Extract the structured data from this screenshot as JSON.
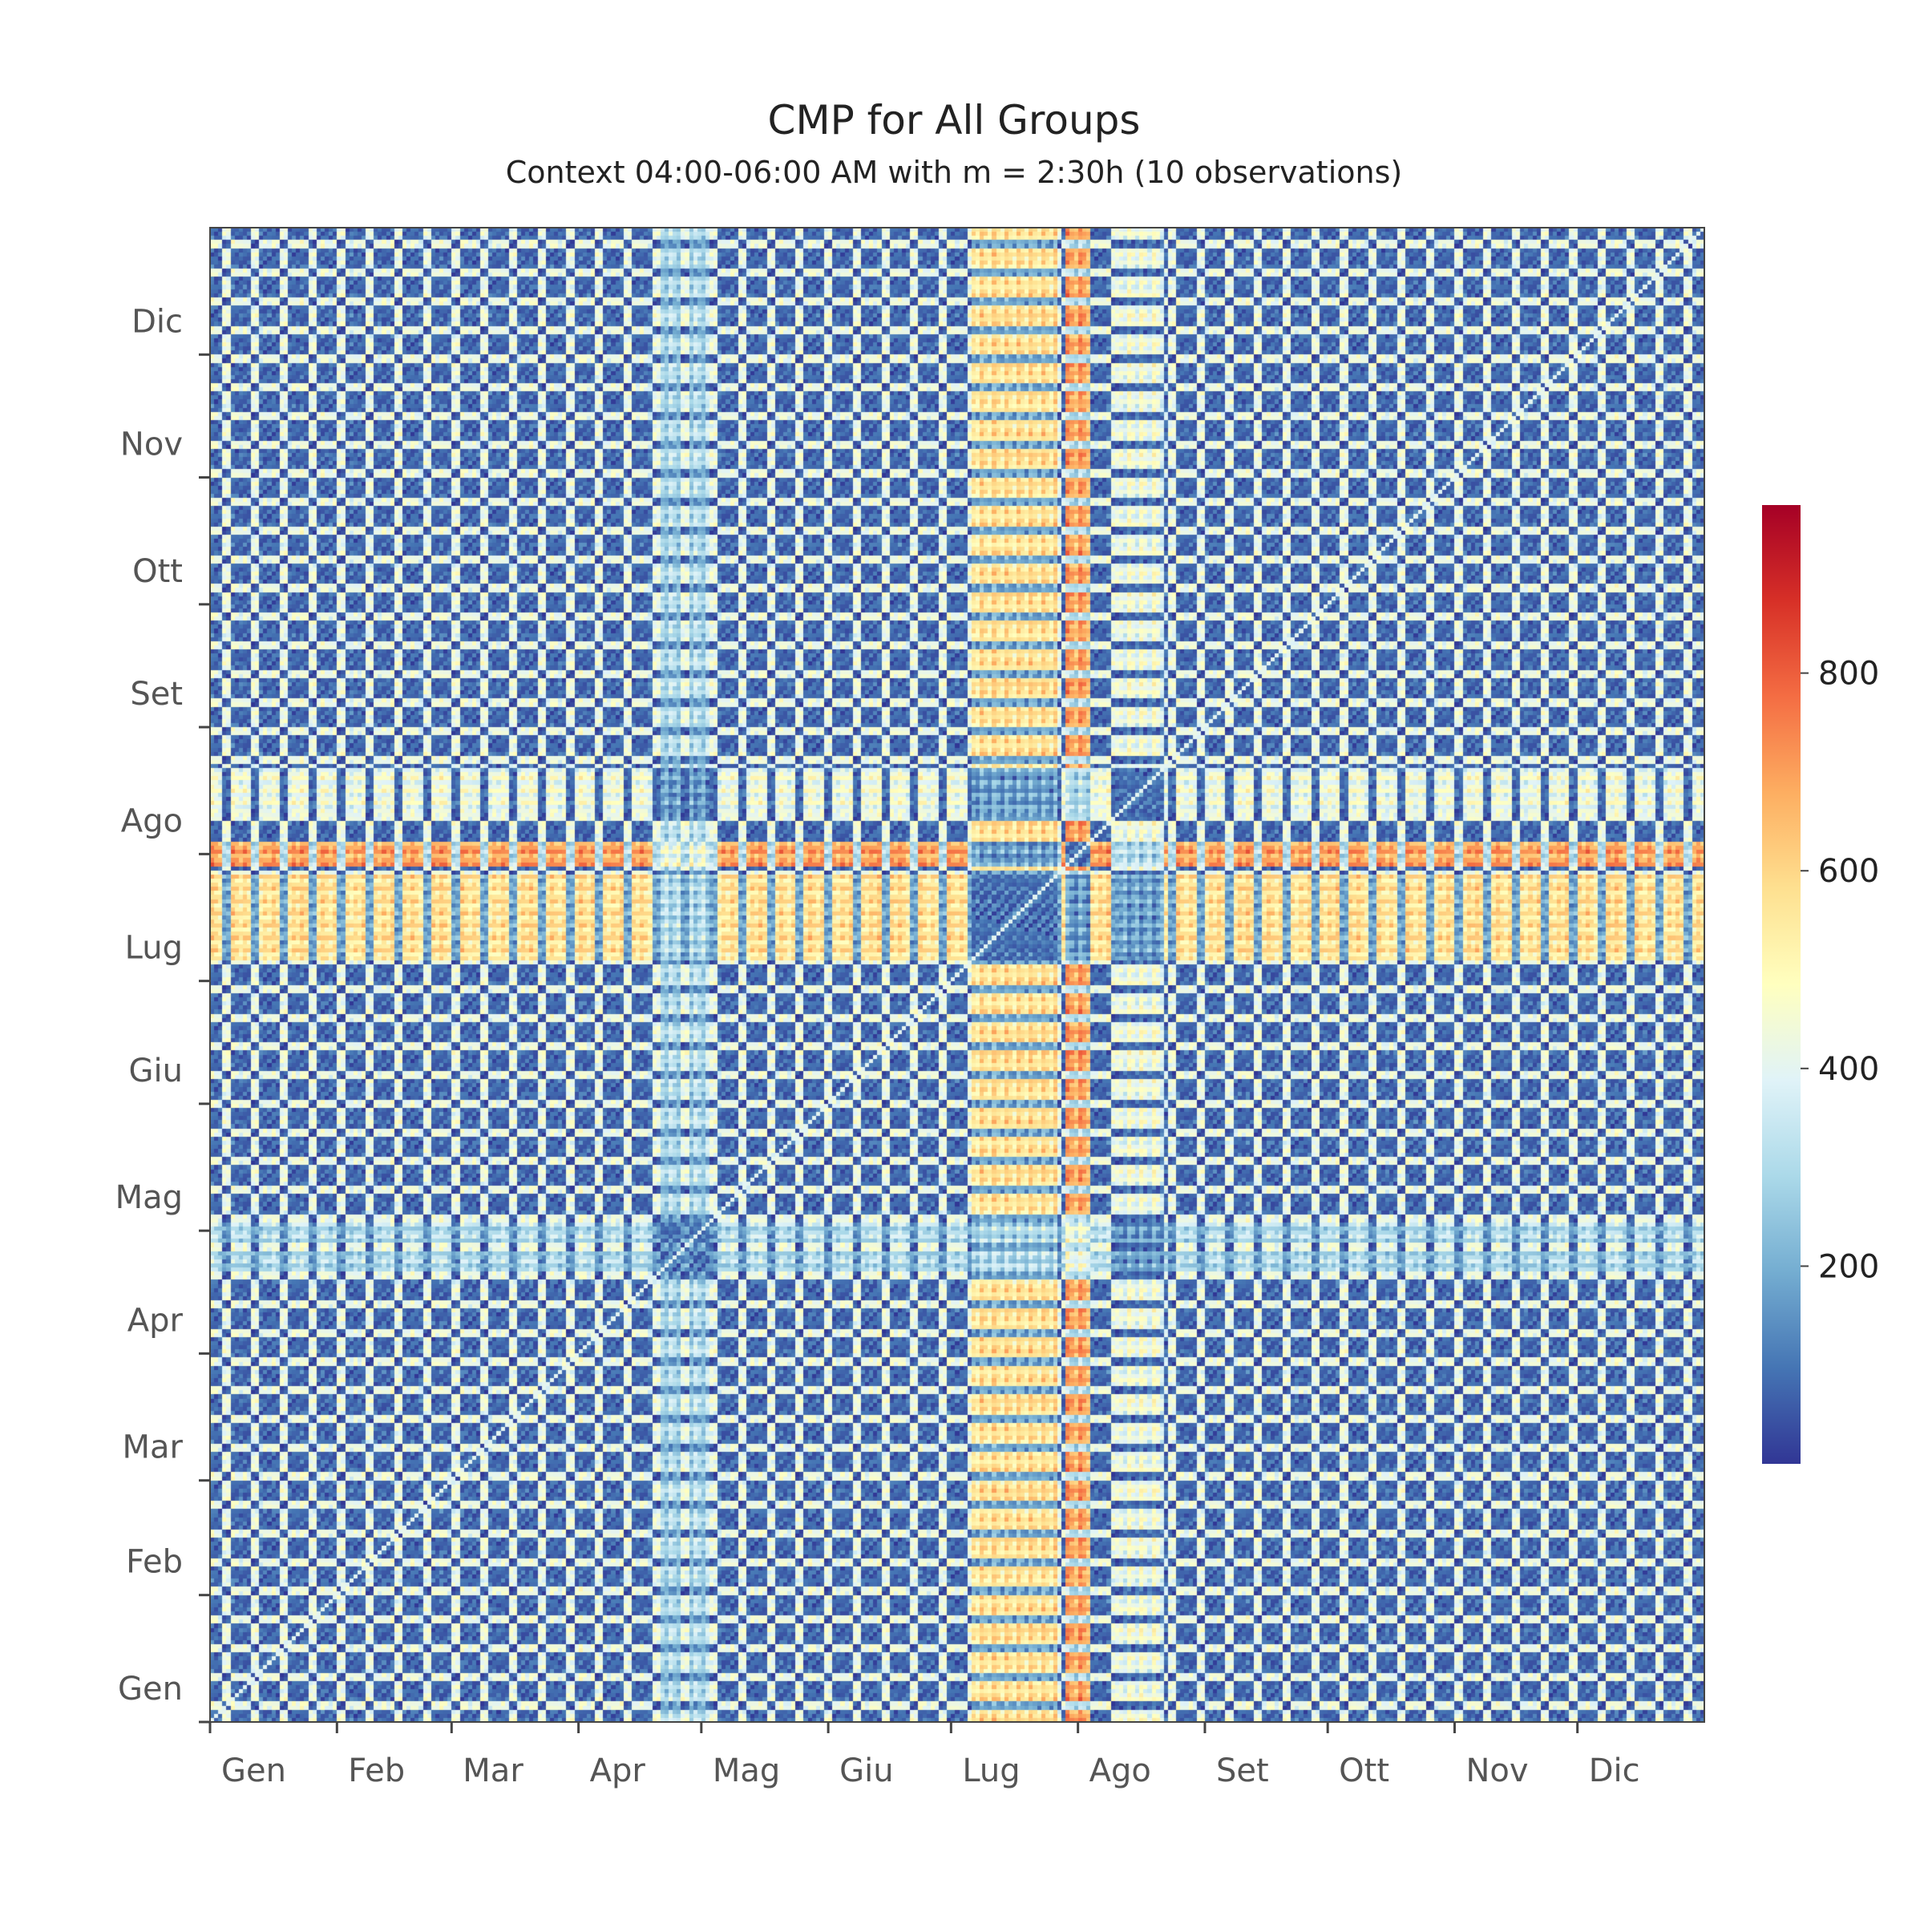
{
  "chart_data": {
    "type": "heatmap",
    "title": "CMP for All Groups",
    "subtitle": "Context 04:00-06:00 AM with m = 2:30h (10 observations)",
    "x_tick_labels": [
      "Gen",
      "Feb",
      "Mar",
      "Apr",
      "Mag",
      "Giu",
      "Lug",
      "Ago",
      "Set",
      "Ott",
      "Nov",
      "Dic"
    ],
    "y_tick_labels": [
      "Gen",
      "Feb",
      "Mar",
      "Apr",
      "Mag",
      "Giu",
      "Lug",
      "Ago",
      "Set",
      "Ott",
      "Nov",
      "Dic"
    ],
    "month_lengths": [
      31,
      28,
      31,
      30,
      31,
      30,
      31,
      31,
      30,
      31,
      30,
      31
    ],
    "colorbar": {
      "ticks": [
        200,
        400,
        600,
        800
      ],
      "range": [
        0,
        970
      ],
      "colorscale": [
        "#313695",
        "#4575b4",
        "#74add1",
        "#abd9e9",
        "#e0f3f8",
        "#ffffbf",
        "#fee090",
        "#fdae61",
        "#f46d43",
        "#d73027",
        "#a50026"
      ]
    },
    "diagonal_value": 400,
    "day_profile": {
      "description_free": true,
      "base_low": 40,
      "weekend_high": 470,
      "hot_ranges": [
        {
          "start": "2020-07-05",
          "end": "2020-07-25",
          "value": 700
        },
        {
          "start": "2020-07-28",
          "end": "2020-08-02",
          "value": 820
        },
        {
          "start": "2020-04-20",
          "end": "2020-05-02",
          "value": 420
        },
        {
          "start": "2020-08-10",
          "end": "2020-08-20",
          "value": 560
        }
      ]
    }
  }
}
